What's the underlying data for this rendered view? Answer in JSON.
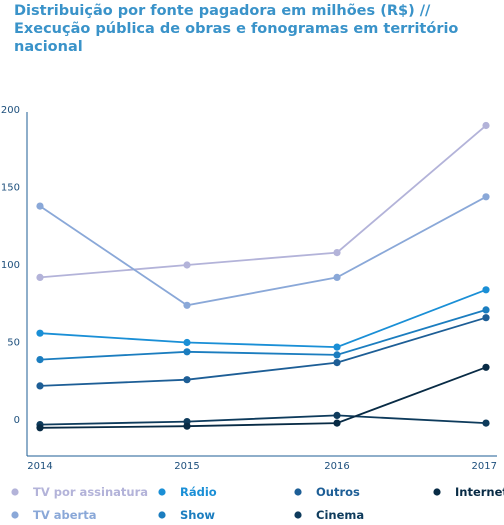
{
  "title_lines": [
    "Distribuição por fonte pagadora em milhões (R$) //",
    "Execução pública de obras e fonogramas em território nacional"
  ],
  "chart_data": {
    "type": "line",
    "title": "Distribuição por fonte pagadora em milhões (R$) // Execução pública de obras e fonogramas em território nacional",
    "xlabel": "",
    "ylabel": "",
    "categories": [
      "2014",
      "2015",
      "2016",
      "2017"
    ],
    "ylim": [
      -8,
      200
    ],
    "yticks": [
      0,
      50,
      100,
      150,
      200
    ],
    "grid": false,
    "legend_position": "bottom",
    "series": [
      {
        "name": "TV por assinatura",
        "color": "#b3b3d9",
        "values": [
          92,
          100,
          108,
          190
        ]
      },
      {
        "name": "TV aberta",
        "color": "#8aa8d8",
        "values": [
          138,
          74,
          92,
          144
        ]
      },
      {
        "name": "Rádio",
        "color": "#1a8fd6",
        "values": [
          56,
          50,
          47,
          84
        ]
      },
      {
        "name": "Show",
        "color": "#1b7dbf",
        "values": [
          39,
          44,
          42,
          71
        ]
      },
      {
        "name": "Outros",
        "color": "#1d5e96",
        "values": [
          22,
          26,
          37,
          66
        ]
      },
      {
        "name": "Cinema",
        "color": "#0e3b5c",
        "values": [
          -3,
          -1,
          3,
          -2
        ]
      },
      {
        "name": "Internet",
        "color": "#082b45",
        "values": [
          -5,
          -4,
          -2,
          34
        ]
      }
    ]
  }
}
